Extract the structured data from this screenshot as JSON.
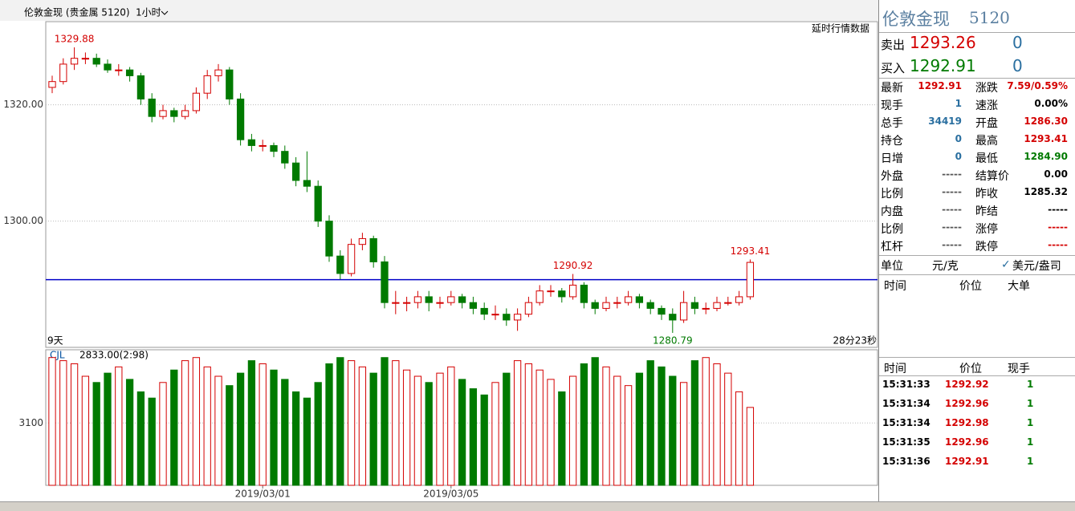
{
  "header": {
    "title": "伦敦金现 (贵金属 5120)",
    "period": "1小时",
    "notice": "延时行情数据",
    "left_info": "9天",
    "right_info": "28分23秒"
  },
  "chart_data": {
    "type": "candlestick",
    "categories": [
      null,
      null,
      null,
      null,
      null,
      null,
      null,
      null,
      null,
      null,
      null,
      null,
      null,
      null,
      null,
      null,
      null,
      null,
      null,
      "2019/03/01",
      null,
      null,
      null,
      null,
      null,
      null,
      null,
      null,
      null,
      null,
      null,
      null,
      null,
      null,
      null,
      null,
      "2019/03/05",
      null,
      null,
      null,
      null,
      null,
      null,
      null,
      null,
      null,
      null,
      null,
      null,
      null,
      null,
      null,
      null,
      null,
      null,
      null,
      null,
      null,
      null,
      null,
      null,
      null,
      null,
      null
    ],
    "candles": [
      [
        1323,
        1325,
        1322,
        1324
      ],
      [
        1324,
        1328,
        1323.5,
        1327
      ],
      [
        1327,
        1329.88,
        1326,
        1328
      ],
      [
        1328,
        1329,
        1327,
        1328
      ],
      [
        1328,
        1328.8,
        1326.5,
        1327
      ],
      [
        1327,
        1327.8,
        1325.5,
        1326
      ],
      [
        1326,
        1327,
        1325,
        1326
      ],
      [
        1326,
        1326.5,
        1324,
        1325
      ],
      [
        1325,
        1325.5,
        1320,
        1321
      ],
      [
        1321,
        1322,
        1317,
        1318
      ],
      [
        1318,
        1320,
        1317.5,
        1319
      ],
      [
        1319,
        1319.5,
        1317,
        1318
      ],
      [
        1318,
        1320,
        1317.5,
        1319
      ],
      [
        1319,
        1323,
        1318.5,
        1322
      ],
      [
        1322,
        1326,
        1321,
        1325
      ],
      [
        1325,
        1327,
        1324,
        1326
      ],
      [
        1326,
        1326.5,
        1320,
        1321
      ],
      [
        1321,
        1322,
        1313,
        1314
      ],
      [
        1314,
        1315,
        1312,
        1313
      ],
      [
        1313,
        1314,
        1312,
        1313
      ],
      [
        1313,
        1313.5,
        1311,
        1312
      ],
      [
        1312,
        1313,
        1309,
        1310
      ],
      [
        1310,
        1311,
        1306,
        1307
      ],
      [
        1307,
        1312,
        1305,
        1306
      ],
      [
        1306,
        1307,
        1299,
        1300
      ],
      [
        1300,
        1301,
        1293,
        1294
      ],
      [
        1294,
        1295,
        1290,
        1291
      ],
      [
        1291,
        1297,
        1290.5,
        1296
      ],
      [
        1296,
        1298,
        1295,
        1297
      ],
      [
        1297,
        1297.5,
        1292,
        1293
      ],
      [
        1293,
        1294,
        1285,
        1286
      ],
      [
        1286,
        1288,
        1284,
        1286
      ],
      [
        1286,
        1287,
        1284.5,
        1286
      ],
      [
        1286,
        1288,
        1285,
        1287
      ],
      [
        1287,
        1288,
        1284.5,
        1286
      ],
      [
        1286,
        1287,
        1285,
        1286
      ],
      [
        1286,
        1288,
        1285.5,
        1287
      ],
      [
        1287,
        1287.5,
        1285,
        1286
      ],
      [
        1286,
        1287,
        1284,
        1285
      ],
      [
        1285,
        1286,
        1283,
        1284
      ],
      [
        1284,
        1285.5,
        1283,
        1284
      ],
      [
        1284,
        1285,
        1282,
        1283
      ],
      [
        1283,
        1285,
        1281.14,
        1284
      ],
      [
        1284,
        1287,
        1283.5,
        1286
      ],
      [
        1286,
        1289,
        1285.5,
        1288
      ],
      [
        1288,
        1289,
        1287,
        1288
      ],
      [
        1288,
        1288.5,
        1286,
        1287
      ],
      [
        1287,
        1290.92,
        1286.5,
        1289
      ],
      [
        1289,
        1289.5,
        1285,
        1286
      ],
      [
        1286,
        1286.5,
        1284,
        1285
      ],
      [
        1285,
        1287,
        1284.5,
        1286
      ],
      [
        1286,
        1287,
        1285,
        1286
      ],
      [
        1286,
        1288,
        1285.5,
        1287
      ],
      [
        1287,
        1287.5,
        1285,
        1286
      ],
      [
        1286,
        1286.5,
        1284,
        1285
      ],
      [
        1285,
        1285.5,
        1283,
        1284
      ],
      [
        1284,
        1285,
        1280.79,
        1283
      ],
      [
        1283,
        1288,
        1282.5,
        1286
      ],
      [
        1286,
        1287,
        1284,
        1285
      ],
      [
        1285,
        1286,
        1284,
        1285
      ],
      [
        1285,
        1287,
        1284.5,
        1286
      ],
      [
        1286,
        1287,
        1285.5,
        1286
      ],
      [
        1286,
        1288,
        1285.5,
        1287
      ],
      [
        1287,
        1293.41,
        1286.5,
        1292.91
      ]
    ],
    "up_color": "#d40000",
    "down_color": "#007a00",
    "ylim": [
      1278.3,
      1334.3
    ],
    "yticks": [
      {
        "value": 1320,
        "label": "1320.00"
      },
      {
        "value": 1300,
        "label": "1300.00"
      }
    ],
    "hline": 1289.93,
    "hline_color": "#0000c8",
    "volume": {
      "name": "CJL",
      "info": "2833.00(2:98)",
      "values": [
        3310,
        3300,
        3290,
        3250,
        3230,
        3260,
        3280,
        3240,
        3200,
        3180,
        3230,
        3270,
        3300,
        3310,
        3280,
        3250,
        3220,
        3260,
        3300,
        3290,
        3270,
        3240,
        3200,
        3180,
        3230,
        3290,
        3310,
        3300,
        3280,
        3260,
        3310,
        3300,
        3270,
        3250,
        3230,
        3260,
        3280,
        3240,
        3210,
        3190,
        3230,
        3260,
        3300,
        3290,
        3270,
        3240,
        3200,
        3250,
        3290,
        3310,
        3280,
        3250,
        3220,
        3260,
        3300,
        3280,
        3250,
        3230,
        3300,
        3310,
        3290,
        3260,
        3200,
        3150
      ],
      "ylim": [
        2900,
        3335
      ],
      "yticks": [
        3100
      ]
    }
  },
  "quote": {
    "title": "伦敦金现",
    "code": "5120",
    "sell": {
      "label": "卖出",
      "price": "1293.26",
      "qty": "0"
    },
    "buy": {
      "label": "买入",
      "price": "1292.91",
      "qty": "0"
    },
    "stats": [
      [
        {
          "label": "最新",
          "value": "1292.91",
          "color": "#d40000"
        },
        {
          "label": "涨跌",
          "value": "7.59/0.59%",
          "color": "#d40000"
        }
      ],
      [
        {
          "label": "现手",
          "value": "1",
          "color": "#2a6fa0"
        },
        {
          "label": "速涨",
          "value": "0.00%",
          "color": "#000000"
        }
      ],
      [
        {
          "label": "总手",
          "value": "34419",
          "color": "#2a6fa0"
        },
        {
          "label": "开盘",
          "value": "1286.30",
          "color": "#d40000"
        }
      ],
      [
        {
          "label": "持仓",
          "value": "0",
          "color": "#2a6fa0"
        },
        {
          "label": "最高",
          "value": "1293.41",
          "color": "#d40000"
        }
      ],
      [
        {
          "label": "日增",
          "value": "0",
          "color": "#2a6fa0"
        },
        {
          "label": "最低",
          "value": "1284.90",
          "color": "#007a00"
        }
      ],
      [
        {
          "label": "外盘",
          "value": "-----",
          "color": "#555555"
        },
        {
          "label": "结算价",
          "value": "0.00",
          "color": "#000000"
        }
      ],
      [
        {
          "label": "比例",
          "value": "-----",
          "color": "#555555"
        },
        {
          "label": "昨收",
          "value": "1285.32",
          "color": "#000000"
        }
      ],
      [
        {
          "label": "内盘",
          "value": "-----",
          "color": "#555555"
        },
        {
          "label": "昨结",
          "value": "-----",
          "color": "#000000"
        }
      ],
      [
        {
          "label": "比例",
          "value": "-----",
          "color": "#555555"
        },
        {
          "label": "涨停",
          "value": "-----",
          "color": "#d40000"
        }
      ],
      [
        {
          "label": "杠杆",
          "value": "-----",
          "color": "#555555"
        },
        {
          "label": "跌停",
          "value": "-----",
          "color": "#d40000"
        }
      ]
    ],
    "unit": {
      "label": "单位",
      "value": "元/克",
      "option": "美元/盎司"
    },
    "big_header": [
      "时间",
      "价位",
      "大单"
    ],
    "trade_header": [
      "时间",
      "价位",
      "现手"
    ],
    "trades": [
      [
        "15:31:33",
        "1292.92",
        "1"
      ],
      [
        "15:31:34",
        "1292.96",
        "1"
      ],
      [
        "15:31:34",
        "1292.98",
        "1"
      ],
      [
        "15:31:35",
        "1292.96",
        "1"
      ],
      [
        "15:31:36",
        "1292.91",
        "1"
      ]
    ]
  }
}
